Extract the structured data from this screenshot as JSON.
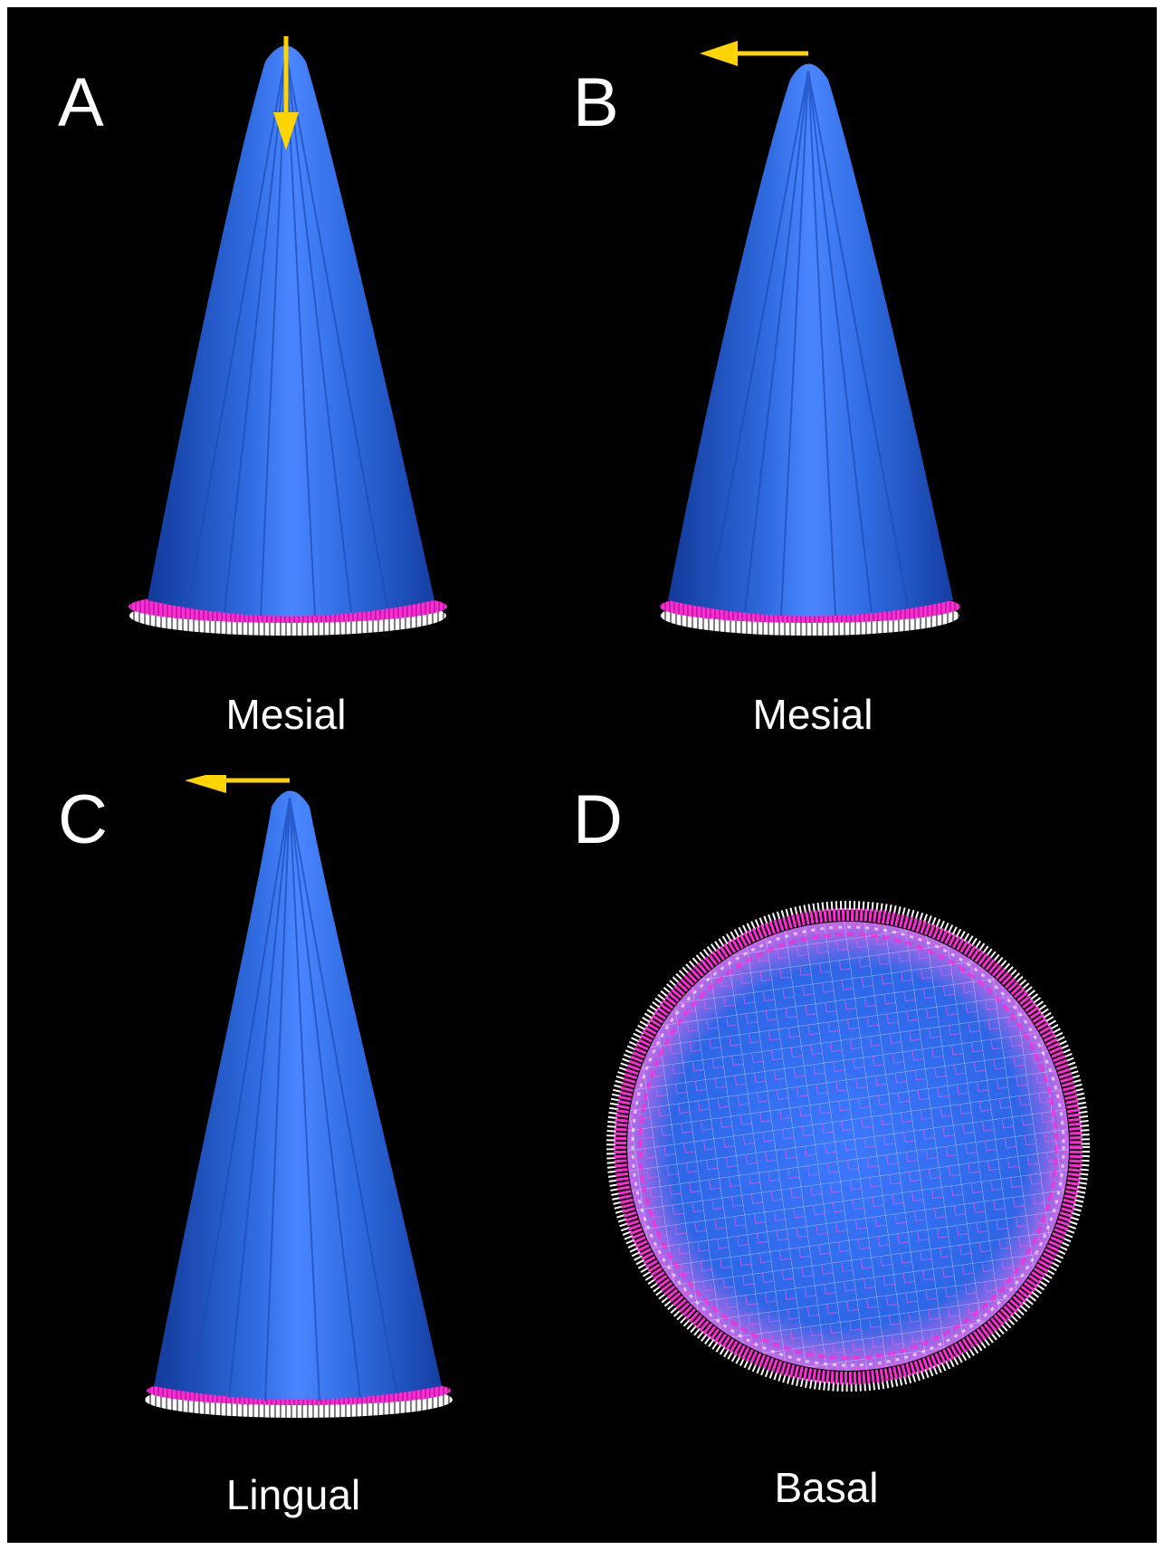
{
  "panels": [
    {
      "letter": "A",
      "caption": "Mesial",
      "view": "side",
      "force_direction": "down"
    },
    {
      "letter": "B",
      "caption": "Mesial",
      "view": "side",
      "force_direction": "left"
    },
    {
      "letter": "C",
      "caption": "Lingual",
      "view": "side",
      "force_direction": "left"
    },
    {
      "letter": "D",
      "caption": "Basal",
      "view": "basal",
      "force_direction": "none"
    }
  ],
  "colors": {
    "background": "#000000",
    "cone_blue": "#2f6be0",
    "cone_highlight": "#4a86ff",
    "base_magenta": "#ff2bd6",
    "base_white": "#ffffff",
    "arrow_yellow": "#ffd400",
    "text": "#ffffff"
  }
}
